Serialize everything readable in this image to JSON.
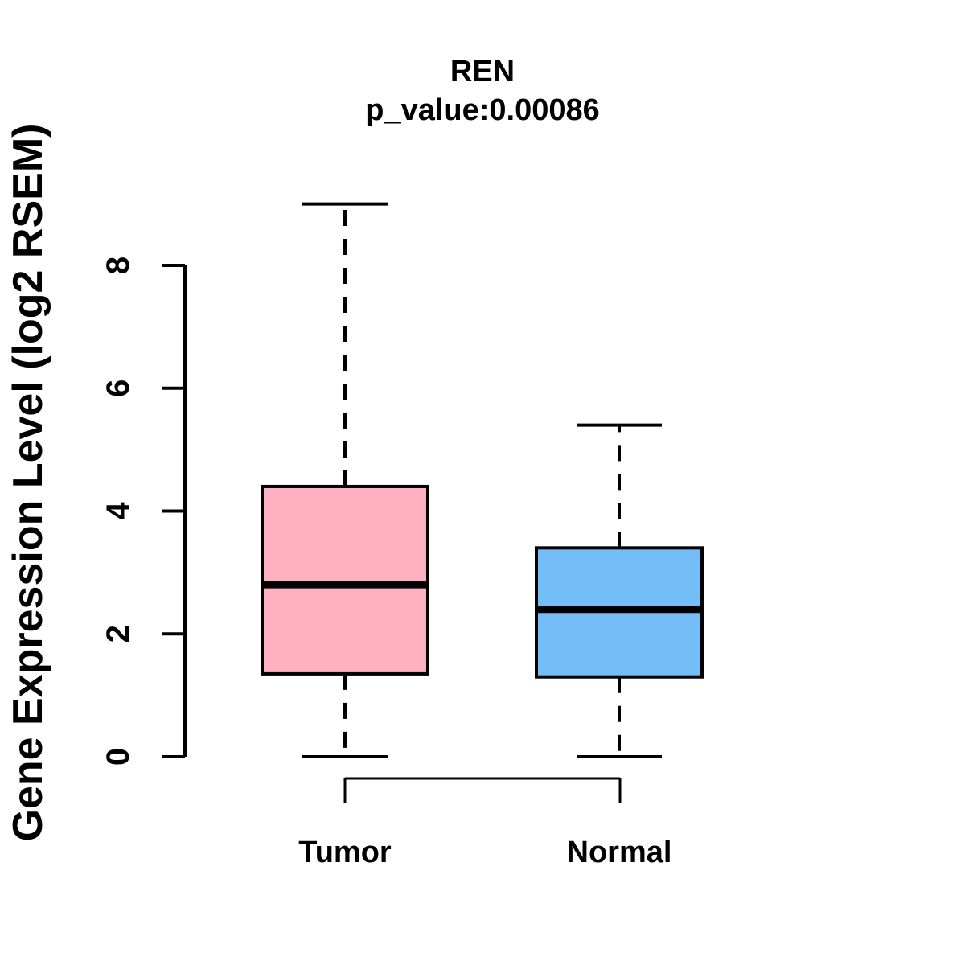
{
  "header": {
    "title": "REN",
    "subtitle": "p_value:0.00086"
  },
  "chart_data": {
    "type": "boxplot",
    "title": "REN",
    "subtitle": "p_value:0.00086",
    "gene": "REN",
    "p_value": "0.00086",
    "ylabel": "Gene Expression Level (log2 RSEM)",
    "xlabel": "",
    "categories": [
      "Tumor",
      "Normal"
    ],
    "y_ticks": [
      0,
      2,
      4,
      6,
      8
    ],
    "ylim": [
      0,
      9.2
    ],
    "grid": "off",
    "legend": "none",
    "series": [
      {
        "name": "Tumor",
        "min": 0,
        "q1": 1.35,
        "median": 2.8,
        "q3": 4.4,
        "max": 9.0,
        "outliers": [],
        "fill": "#ffb1c1"
      },
      {
        "name": "Normal",
        "min": 0,
        "q1": 1.3,
        "median": 2.4,
        "q3": 3.4,
        "max": 5.4,
        "outliers": [],
        "fill": "#74bef8"
      }
    ]
  },
  "colors": {
    "tumor_fill": "#ffb1c1",
    "normal_fill": "#74bef8",
    "line": "#000000",
    "background": "#ffffff"
  }
}
